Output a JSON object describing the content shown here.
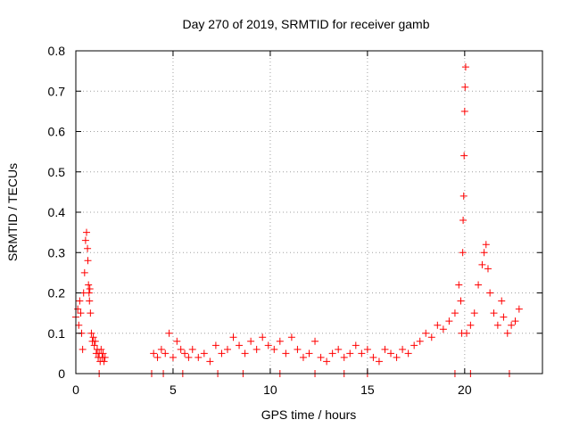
{
  "chart_data": {
    "type": "scatter",
    "title": "Day 270 of 2019, SRMTID for receiver gamb",
    "xlabel": "GPS time / hours",
    "ylabel": "SRMTID / TECUs",
    "xlim": [
      0,
      24
    ],
    "ylim": [
      0,
      0.8
    ],
    "xticks": [
      0,
      5,
      10,
      15,
      20
    ],
    "yticks": [
      0,
      0.1,
      0.2,
      0.3,
      0.4,
      0.5,
      0.6,
      0.7,
      0.8
    ],
    "xtick_labels": [
      "0",
      "5",
      "10",
      "15",
      "20"
    ],
    "ytick_labels": [
      "0",
      "0.1",
      "0.2",
      "0.3",
      "0.4",
      "0.5",
      "0.6",
      "0.7",
      "0.8"
    ],
    "grid": true,
    "marker": "+",
    "color": "#ff0000",
    "series": [
      {
        "name": "SRMTID",
        "x": [
          0.0,
          0.1,
          0.15,
          0.2,
          0.25,
          0.3,
          0.35,
          0.4,
          0.45,
          0.5,
          0.55,
          0.6,
          0.62,
          0.65,
          0.68,
          0.7,
          0.72,
          0.75,
          0.8,
          0.85,
          0.9,
          0.95,
          1.0,
          1.05,
          1.1,
          1.15,
          1.2,
          1.25,
          1.3,
          1.35,
          1.4,
          1.45,
          1.5,
          4.0,
          4.2,
          4.4,
          4.6,
          4.8,
          5.0,
          5.2,
          5.4,
          5.6,
          5.8,
          6.0,
          6.3,
          6.6,
          6.9,
          7.2,
          7.5,
          7.8,
          8.1,
          8.4,
          8.7,
          9.0,
          9.3,
          9.6,
          9.9,
          10.2,
          10.5,
          10.8,
          11.1,
          11.4,
          11.7,
          12.0,
          12.3,
          12.6,
          12.9,
          13.2,
          13.5,
          13.8,
          14.1,
          14.4,
          14.7,
          15.0,
          15.3,
          15.6,
          15.9,
          16.2,
          16.5,
          16.8,
          17.1,
          17.4,
          17.7,
          18.0,
          18.3,
          18.6,
          18.9,
          19.2,
          19.5,
          19.7,
          19.8,
          19.85,
          19.9,
          19.92,
          19.95,
          19.97,
          20.0,
          20.02,
          20.05,
          20.1,
          20.3,
          20.5,
          20.7,
          20.9,
          21.0,
          21.1,
          21.2,
          21.3,
          21.5,
          21.7,
          21.9,
          22.0,
          22.2,
          22.4,
          22.6,
          22.8,
          1.2,
          3.9,
          4.5,
          5.5,
          7.3,
          8.6,
          10.5,
          12.3,
          13.8,
          15.0,
          19.5,
          20.3,
          22.3
        ],
        "y": [
          0.14,
          0.16,
          0.12,
          0.18,
          0.15,
          0.1,
          0.06,
          0.2,
          0.25,
          0.33,
          0.35,
          0.31,
          0.28,
          0.22,
          0.2,
          0.18,
          0.21,
          0.15,
          0.1,
          0.08,
          0.09,
          0.07,
          0.08,
          0.05,
          0.06,
          0.04,
          0.05,
          0.03,
          0.06,
          0.04,
          0.05,
          0.03,
          0.04,
          0.05,
          0.04,
          0.06,
          0.05,
          0.1,
          0.04,
          0.08,
          0.06,
          0.05,
          0.04,
          0.06,
          0.04,
          0.05,
          0.03,
          0.07,
          0.05,
          0.06,
          0.09,
          0.07,
          0.05,
          0.08,
          0.06,
          0.09,
          0.07,
          0.06,
          0.08,
          0.05,
          0.09,
          0.06,
          0.04,
          0.05,
          0.08,
          0.04,
          0.03,
          0.05,
          0.06,
          0.04,
          0.05,
          0.07,
          0.05,
          0.06,
          0.04,
          0.03,
          0.06,
          0.05,
          0.04,
          0.06,
          0.05,
          0.07,
          0.08,
          0.1,
          0.09,
          0.12,
          0.11,
          0.13,
          0.15,
          0.22,
          0.18,
          0.1,
          0.3,
          0.38,
          0.44,
          0.54,
          0.65,
          0.71,
          0.76,
          0.1,
          0.12,
          0.15,
          0.22,
          0.27,
          0.3,
          0.32,
          0.26,
          0.2,
          0.15,
          0.12,
          0.18,
          0.14,
          0.1,
          0.12,
          0.13,
          0.16,
          0.0,
          0.0,
          0.0,
          0.0,
          0.0,
          0.0,
          0.0,
          0.0,
          0.0,
          0.0,
          0.0,
          0.0,
          0.0
        ]
      }
    ]
  }
}
